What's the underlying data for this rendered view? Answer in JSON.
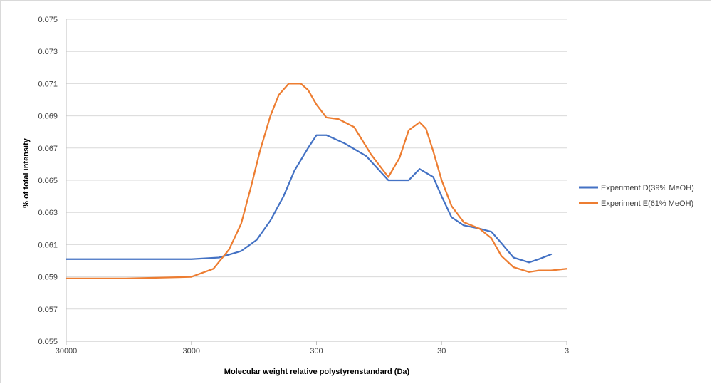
{
  "chart_data": {
    "type": "line",
    "title": "",
    "xlabel": "Molecular weight relative polystyrenstandard  (Da)",
    "ylabel": "% of total intensity",
    "x_scale": "log",
    "x_reversed": true,
    "xlim": [
      30000,
      3
    ],
    "x_ticks": [
      30000,
      3000,
      300,
      30,
      3
    ],
    "ylim": [
      0.055,
      0.075
    ],
    "y_ticks": [
      0.055,
      0.057,
      0.059,
      0.061,
      0.063,
      0.065,
      0.067,
      0.069,
      0.071,
      0.073,
      0.075
    ],
    "grid": "horizontal",
    "legend_position": "right",
    "series": [
      {
        "name": "Experiment D(39% MeOH)",
        "color": "#4472C4",
        "x": [
          30000,
          10000,
          3000,
          1800,
          1200,
          900,
          700,
          550,
          450,
          350,
          300,
          250,
          180,
          120,
          80,
          55,
          45,
          35,
          30,
          25,
          20,
          15,
          12,
          10,
          8,
          6,
          5,
          4
        ],
        "y": [
          0.0601,
          0.0601,
          0.0601,
          0.0602,
          0.0606,
          0.0613,
          0.0625,
          0.064,
          0.0656,
          0.067,
          0.0678,
          0.0678,
          0.0673,
          0.0665,
          0.065,
          0.065,
          0.0657,
          0.0652,
          0.064,
          0.0627,
          0.0622,
          0.062,
          0.0618,
          0.0611,
          0.0602,
          0.0599,
          0.0601,
          0.0604
        ]
      },
      {
        "name": "Experiment E(61% MeOH)",
        "color": "#ED7D31",
        "x": [
          30000,
          10000,
          3000,
          2000,
          1500,
          1200,
          1000,
          850,
          700,
          600,
          500,
          400,
          350,
          300,
          250,
          200,
          150,
          110,
          80,
          65,
          55,
          45,
          40,
          35,
          30,
          25,
          20,
          15,
          12,
          10,
          8,
          6,
          5,
          4,
          3
        ],
        "y": [
          0.0589,
          0.0589,
          0.059,
          0.0595,
          0.0607,
          0.0623,
          0.0646,
          0.0668,
          0.069,
          0.0703,
          0.071,
          0.071,
          0.0706,
          0.0697,
          0.0689,
          0.0688,
          0.0683,
          0.0666,
          0.0652,
          0.0664,
          0.0681,
          0.0686,
          0.0682,
          0.0668,
          0.065,
          0.0634,
          0.0624,
          0.062,
          0.0614,
          0.0603,
          0.0596,
          0.0593,
          0.0594,
          0.0594,
          0.0595
        ]
      }
    ]
  }
}
